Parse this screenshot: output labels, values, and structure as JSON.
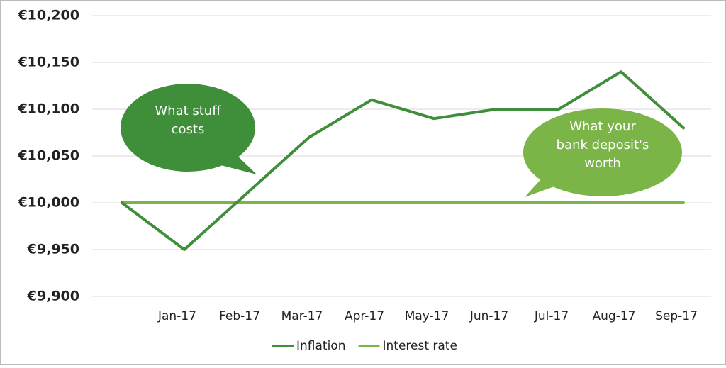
{
  "chart_data": {
    "type": "line",
    "categories": [
      null,
      "Jan-17",
      "Feb-17",
      "Mar-17",
      "Apr-17",
      "May-17",
      "Jun-17",
      "Jul-17",
      "Aug-17",
      "Sep-17"
    ],
    "series": [
      {
        "name": "Inflation",
        "color": "#3e8e3a",
        "values": [
          10000,
          9950,
          10010,
          10070,
          10110,
          10090,
          10100,
          10100,
          10140,
          10080
        ]
      },
      {
        "name": "Interest rate",
        "color": "#7bb547",
        "values": [
          10000,
          10000,
          10000,
          10000,
          10000,
          10000,
          10000,
          10000,
          10000,
          10000
        ]
      }
    ],
    "ylim": [
      9900,
      10200
    ],
    "yticks": [
      {
        "value": 9900,
        "label": "€9,900"
      },
      {
        "value": 9950,
        "label": "€9,950"
      },
      {
        "value": 10000,
        "label": "€10,000"
      },
      {
        "value": 10050,
        "label": "€10,050"
      },
      {
        "value": 10100,
        "label": "€10,100"
      },
      {
        "value": 10150,
        "label": "€10,150"
      },
      {
        "value": 10200,
        "label": "€10,200"
      }
    ],
    "grid": true,
    "legend": "bottom",
    "annotations": [
      {
        "lines": [
          "What stuff",
          "costs"
        ],
        "color": "#3e8e3a"
      },
      {
        "lines": [
          "What your",
          "bank deposit's",
          "worth"
        ],
        "color": "#7bb547"
      }
    ]
  }
}
